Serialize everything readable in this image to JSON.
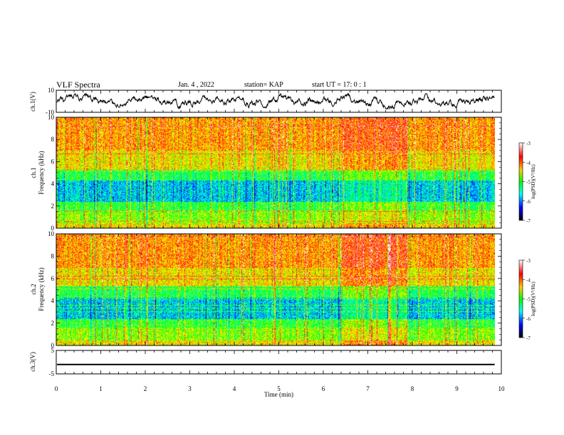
{
  "header": {
    "title": "VLF Spectra",
    "date": "Jan. 4 , 2022",
    "station": "station= KAP",
    "start": "start  UT =   17: 0  : 1"
  },
  "chart_data": [
    {
      "type": "line",
      "ylabel": "ch.1(V)",
      "ylim": [
        -10,
        10
      ],
      "yticks": [
        "10",
        "-10"
      ],
      "xlim": [
        0,
        10
      ],
      "series": [
        {
          "description": "noisy waveform oscillating roughly between -6 and 6 V",
          "values_range": [
            -6,
            6
          ]
        }
      ]
    },
    {
      "type": "heatmap",
      "ylabel": "ch.1\nFrequency (kHz)",
      "ylabel_lines": [
        "ch.1",
        "Frequency (kHz)"
      ],
      "ylim": [
        0,
        10
      ],
      "yticks": [
        "0",
        "2",
        "4",
        "6",
        "8",
        "10"
      ],
      "xlim": [
        0,
        9.85
      ],
      "colorbar": {
        "label": "log(PSD)(V²/Hz)",
        "range": [
          -7,
          -3
        ],
        "ticks": [
          "-3",
          "-4",
          "-5",
          "-6",
          "-7"
        ]
      }
    },
    {
      "type": "heatmap",
      "ylabel": "ch.2\nFrequency (kHz)",
      "ylabel_lines": [
        "ch.2",
        "Frequency (kHz)"
      ],
      "ylim": [
        0,
        10
      ],
      "yticks": [
        "0",
        "2",
        "4",
        "6",
        "8",
        "10"
      ],
      "xlim": [
        0,
        9.85
      ],
      "colorbar": {
        "label": "log(PSD)(V²/Hz)",
        "range": [
          -7,
          -3
        ],
        "ticks": [
          "-3",
          "-4",
          "-5",
          "-6",
          "-7"
        ]
      }
    },
    {
      "type": "line",
      "ylabel": "ch.3(V)",
      "ylim": [
        -5,
        5
      ],
      "yticks": [
        "5",
        "-5"
      ],
      "xlim": [
        0,
        10
      ],
      "series": [
        {
          "description": "nearly constant thick trace near -1 V",
          "values_range": [
            -1.3,
            -0.7
          ]
        }
      ]
    }
  ],
  "xaxis": {
    "label": "Time (min)",
    "ticks": [
      "0",
      "1",
      "2",
      "3",
      "4",
      "5",
      "6",
      "7",
      "8",
      "9",
      "10"
    ],
    "range": [
      0,
      10
    ]
  }
}
